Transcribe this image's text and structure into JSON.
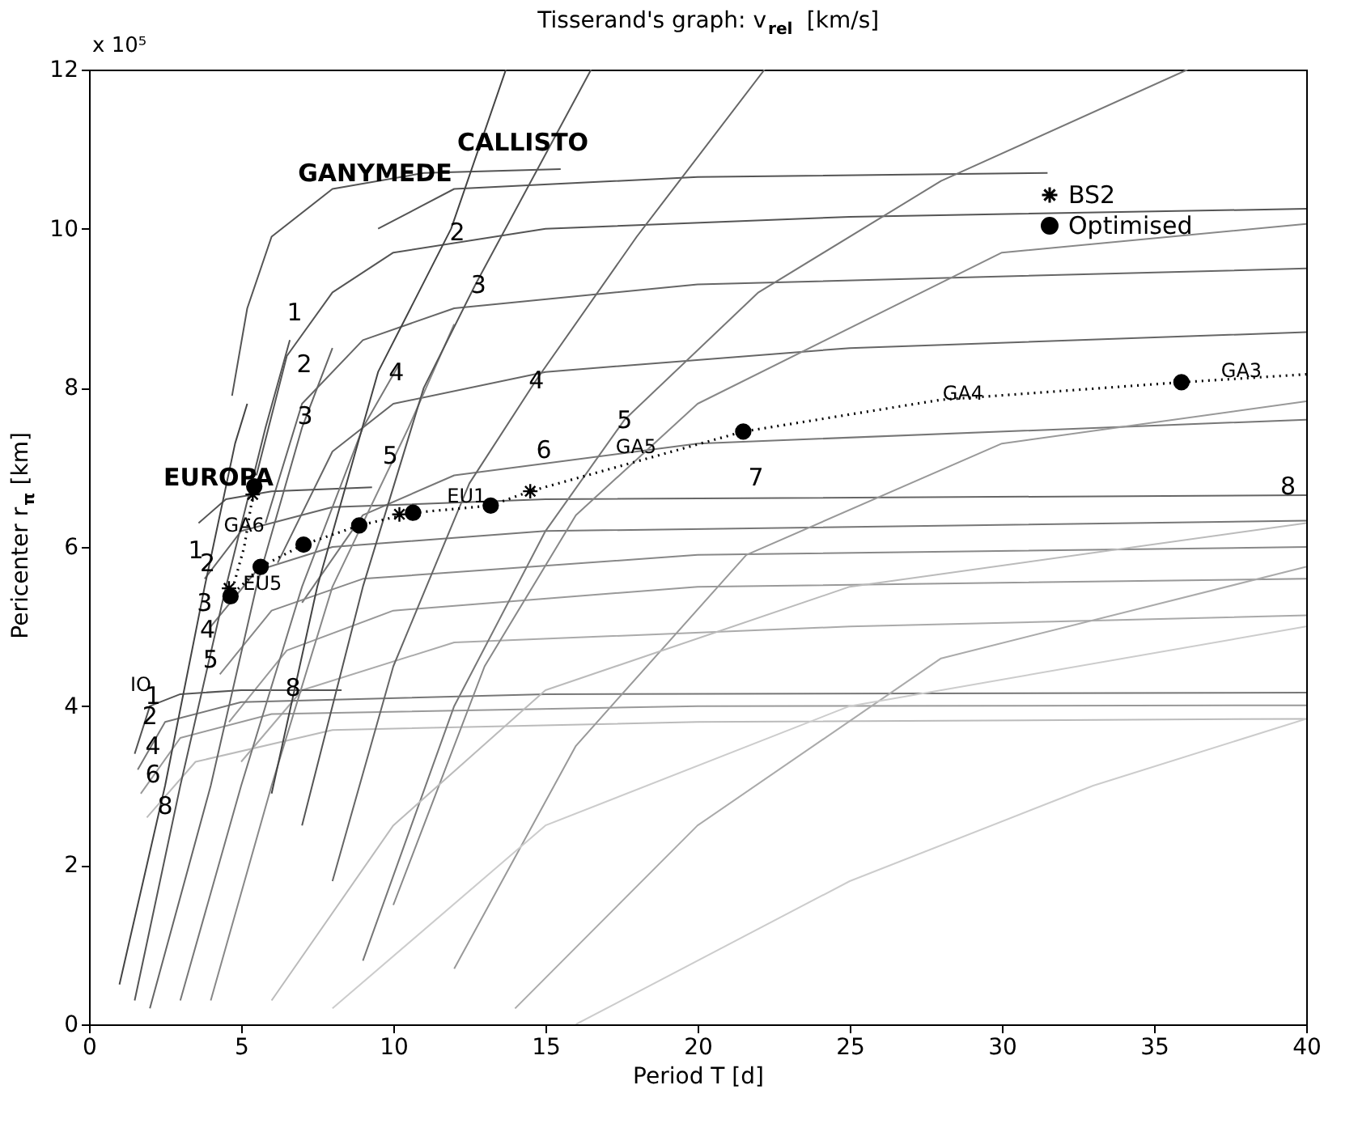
{
  "chart_data": {
    "type": "line",
    "title": "Tisserand's graph: v$_{rel}$ [km/s]",
    "xlabel": "Period T [d]",
    "ylabel": "Pericenter r$_{π}$ [km]",
    "xlim": [
      0,
      40
    ],
    "xticks": [
      0,
      5,
      10,
      15,
      20,
      25,
      30,
      35,
      40
    ],
    "ylim": [
      0,
      12
    ],
    "yticks": [
      0,
      2,
      4,
      6,
      8,
      10,
      12
    ],
    "legend": "top right",
    "series": [
      {
        "color": "#555555",
        "x": [
          4.7,
          5.2,
          6,
          8,
          11,
          15.5
        ],
        "values": [
          7.9,
          9.0,
          9.9,
          10.5,
          10.7,
          10.75
        ]
      },
      {
        "color": "#555555",
        "x": [
          5.5,
          6.5,
          8,
          10,
          15,
          25,
          40
        ],
        "values": [
          6.9,
          8.4,
          9.2,
          9.7,
          10.0,
          10.15,
          10.25
        ]
      },
      {
        "color": "#666666",
        "x": [
          5.8,
          7,
          9,
          12,
          20,
          40
        ],
        "values": [
          6.3,
          7.8,
          8.6,
          9.0,
          9.3,
          9.5
        ]
      },
      {
        "color": "#666666",
        "x": [
          6.2,
          8,
          10,
          15,
          25,
          40
        ],
        "values": [
          5.8,
          7.2,
          7.8,
          8.2,
          8.5,
          8.7
        ]
      },
      {
        "color": "#777777",
        "x": [
          7,
          9,
          12,
          20,
          40
        ],
        "values": [
          5.3,
          6.4,
          6.9,
          7.3,
          7.6
        ]
      },
      {
        "color": "#555555",
        "x": [
          9.5,
          12,
          20,
          31.5
        ],
        "values": [
          10.0,
          10.5,
          10.65,
          10.7
        ]
      },
      {
        "color": "#555555",
        "x": [
          3.6,
          4.5,
          6,
          9.3
        ],
        "values": [
          6.3,
          6.6,
          6.7,
          6.75
        ]
      },
      {
        "color": "#666666",
        "x": [
          3.8,
          5,
          8,
          15,
          40
        ],
        "values": [
          5.6,
          6.2,
          6.5,
          6.6,
          6.65
        ]
      },
      {
        "color": "#777777",
        "x": [
          4,
          5.5,
          8,
          15,
          40
        ],
        "values": [
          5.0,
          5.7,
          6.0,
          6.2,
          6.33
        ]
      },
      {
        "color": "#888888",
        "x": [
          4.3,
          6,
          9,
          20,
          40
        ],
        "values": [
          4.4,
          5.2,
          5.6,
          5.9,
          6.0
        ]
      },
      {
        "color": "#999999",
        "x": [
          4.6,
          6.5,
          10,
          20,
          40
        ],
        "values": [
          3.8,
          4.7,
          5.2,
          5.5,
          5.6
        ]
      },
      {
        "color": "#aaaaaa",
        "x": [
          5,
          7,
          12,
          25,
          40
        ],
        "values": [
          3.3,
          4.2,
          4.8,
          5.0,
          5.14
        ]
      },
      {
        "color": "#555555",
        "x": [
          1.5,
          2,
          3,
          5,
          8.3
        ],
        "values": [
          3.4,
          4.0,
          4.15,
          4.2,
          4.2
        ]
      },
      {
        "color": "#777777",
        "x": [
          1.6,
          2.5,
          5,
          15,
          40
        ],
        "values": [
          3.2,
          3.8,
          4.05,
          4.15,
          4.17
        ]
      },
      {
        "color": "#999999",
        "x": [
          1.7,
          3,
          6,
          20,
          40
        ],
        "values": [
          2.9,
          3.6,
          3.9,
          4.0,
          4.01
        ]
      },
      {
        "color": "#bbbbbb",
        "x": [
          1.9,
          3.5,
          8,
          20,
          40
        ],
        "values": [
          2.6,
          3.3,
          3.7,
          3.8,
          3.84
        ]
      },
      {
        "color": "#444444",
        "x": [
          1,
          2.5,
          3.8,
          4.8,
          5.2
        ],
        "values": [
          0.5,
          3.0,
          5.5,
          7.3,
          7.8
        ]
      },
      {
        "color": "#555555",
        "x": [
          1.5,
          3,
          4.5,
          5.8,
          6.6
        ],
        "values": [
          0.3,
          3.0,
          5.5,
          7.5,
          8.6
        ]
      },
      {
        "color": "#666666",
        "x": [
          2,
          4,
          5.5,
          7,
          8
        ],
        "values": [
          0.2,
          3.0,
          5.5,
          7.5,
          8.5
        ]
      },
      {
        "color": "#777777",
        "x": [
          3,
          5,
          7,
          9,
          10.2
        ],
        "values": [
          0.3,
          3.0,
          5.5,
          7.5,
          8.3
        ]
      },
      {
        "color": "#888888",
        "x": [
          4,
          6,
          8,
          10.5,
          12
        ],
        "values": [
          0.3,
          3.0,
          5.5,
          7.5,
          8.8
        ]
      },
      {
        "color": "#444444",
        "x": [
          6,
          7.5,
          9.5,
          11.9,
          13.7
        ],
        "values": [
          2.9,
          5.5,
          8.2,
          10.0,
          12
        ]
      },
      {
        "color": "#555555",
        "x": [
          7,
          9,
          11,
          12.7,
          16.5
        ],
        "values": [
          2.5,
          5.5,
          8.0,
          9.3,
          12
        ]
      },
      {
        "color": "#666666",
        "x": [
          8,
          10,
          12.5,
          14.7,
          18,
          22.2
        ],
        "values": [
          1.8,
          4.5,
          6.8,
          8.1,
          9.9,
          12
        ]
      },
      {
        "color": "#777777",
        "x": [
          9,
          12,
          15,
          17.6,
          22,
          28,
          36.1
        ],
        "values": [
          0.8,
          4.0,
          6.2,
          7.6,
          9.2,
          10.6,
          12
        ]
      },
      {
        "color": "#888888",
        "x": [
          10,
          13,
          16,
          20,
          30,
          40
        ],
        "values": [
          1.5,
          4.5,
          6.4,
          7.8,
          9.7,
          10.06
        ]
      },
      {
        "color": "#999999",
        "x": [
          12,
          16,
          21.6,
          30,
          40
        ],
        "values": [
          0.7,
          3.5,
          5.9,
          7.3,
          7.83
        ]
      },
      {
        "color": "#aaaaaa",
        "x": [
          14,
          20,
          28,
          40
        ],
        "values": [
          0.2,
          2.5,
          4.6,
          5.75
        ]
      },
      {
        "color": "#cccccc",
        "x": [
          16,
          25,
          33,
          40
        ],
        "values": [
          0.0,
          1.8,
          3.0,
          3.84
        ]
      },
      {
        "color": "#bbbbbb",
        "x": [
          6,
          10,
          15,
          25,
          40
        ],
        "values": [
          0.3,
          2.5,
          4.2,
          5.5,
          6.3
        ]
      },
      {
        "color": "#cccccc",
        "x": [
          8,
          15,
          25,
          40
        ],
        "values": [
          0.2,
          2.5,
          4.0,
          5.0
        ]
      },
      {
        "color": "#000000",
        "line_style": "dotted",
        "x": [
          5.43,
          5.1,
          4.65,
          5.64,
          7.05,
          8.88,
          10.65,
          13.2,
          14.5,
          21.5,
          28,
          35.9,
          40
        ],
        "values": [
          6.76,
          6.0,
          5.38,
          5.75,
          6.03,
          6.27,
          6.43,
          6.52,
          6.7,
          7.45,
          7.85,
          8.07,
          8.17
        ]
      },
      {
        "type": "scatter",
        "name": "BS2",
        "color": "#000000",
        "marker": "cross",
        "x": [
          5.38,
          4.6,
          10.2,
          14.5
        ],
        "values": [
          6.66,
          5.48,
          6.41,
          6.7
        ]
      },
      {
        "type": "scatter",
        "name": "Optimised",
        "color": "#000000",
        "marker": "circle",
        "x": [
          5.43,
          4.65,
          5.64,
          7.05,
          8.88,
          10.65,
          13.2,
          21.5,
          35.9
        ],
        "values": [
          6.76,
          5.38,
          5.75,
          6.03,
          6.27,
          6.43,
          6.52,
          7.45,
          8.07
        ]
      }
    ],
    "annotations": [
      "x 10⁵",
      "IO",
      "EUROPA",
      {
        "text": "GANYMEDE",
        "x": 9.4,
        "y": 10.7
      },
      "CALLISTO",
      "1",
      "2",
      {
        "text": "3",
        "x": 7.1,
        "y": 7.65
      },
      {
        "text": "4",
        "x": 10.1,
        "y": 8.2
      },
      {
        "text": "5",
        "x": 9.9,
        "y": 7.15
      },
      {
        "text": "2",
        "x": 12.1,
        "y": 9.96
      },
      {
        "text": "3",
        "x": 12.8,
        "y": 9.3
      },
      {
        "text": "4",
        "x": 14.7,
        "y": 8.1
      },
      {
        "text": "5",
        "x": 17.6,
        "y": 7.6
      },
      "6",
      "7",
      {
        "text": "8",
        "x": 39.4,
        "y": 6.76
      },
      "1",
      {
        "text": "2",
        "x": 3.9,
        "y": 5.8
      },
      {
        "text": "3",
        "x": 3.8,
        "y": 5.3
      },
      {
        "text": "4",
        "x": 3.9,
        "y": 4.96
      },
      {
        "text": "5",
        "x": 4.0,
        "y": 4.59
      },
      {
        "text": "8",
        "x": 6.7,
        "y": 4.23
      },
      {
        "text": "1",
        "x": 2.1,
        "y": 4.13
      },
      {
        "text": "2",
        "x": 2.0,
        "y": 3.87
      },
      {
        "text": "4",
        "x": 2.1,
        "y": 3.5
      },
      {
        "text": "6",
        "x": 2.1,
        "y": 3.14
      },
      {
        "text": "8",
        "x": 2.5,
        "y": 2.75
      },
      {
        "text": "GA6",
        "x": 5.1,
        "y": 6.27
      },
      {
        "text": "EU5",
        "x": 5.7,
        "y": 5.54
      },
      {
        "text": "EU1",
        "x": 12.4,
        "y": 6.64
      },
      "GA5",
      "GA4",
      "GA3"
    ]
  }
}
